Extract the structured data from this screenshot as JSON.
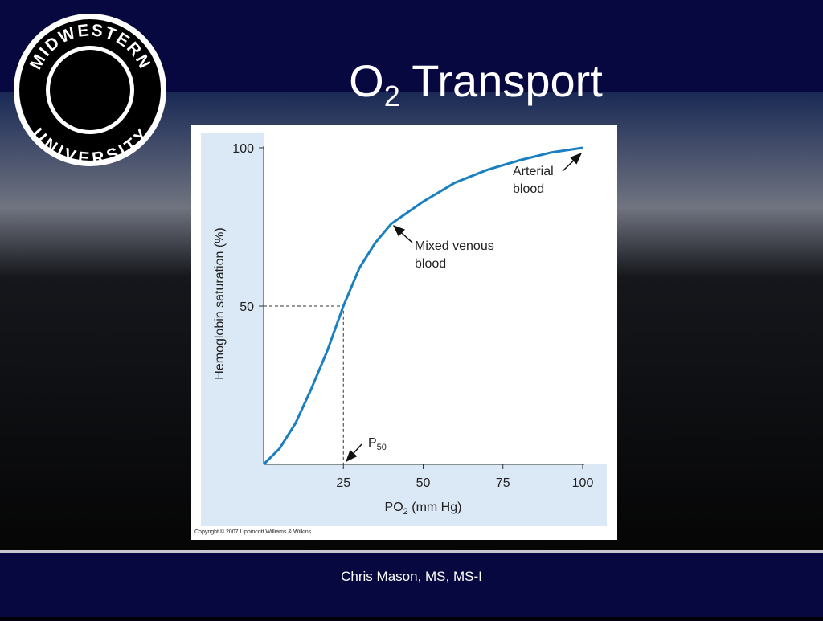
{
  "slide": {
    "title": {
      "main": "O",
      "sub": "2",
      "rest": " Transport"
    },
    "logo": {
      "top": "MIDWESTERN",
      "bottom": "UNIVERSITY"
    },
    "footer": "Chris Mason, MS, MS-I",
    "copyright": "Copyright © 2007 Lippincott Williams & Wilkins."
  },
  "chart_data": {
    "type": "line",
    "x": [
      0,
      5,
      10,
      15,
      20,
      25,
      30,
      35,
      40,
      50,
      60,
      70,
      80,
      90,
      100
    ],
    "values": [
      0,
      5,
      13,
      24,
      36,
      50,
      62,
      70,
      76,
      83,
      89,
      93,
      96,
      98.5,
      100
    ],
    "color": "#1a7fc0",
    "xlim": [
      0,
      100
    ],
    "ylim": [
      0,
      100
    ],
    "xticks": [
      25,
      50,
      75,
      100
    ],
    "yticks": [
      50,
      100
    ],
    "x_label": {
      "main": "PO",
      "sub": "2",
      "rest": " (mm Hg)"
    },
    "y_label": "Hemoglobin saturation (%)",
    "p50_point": {
      "x": 25,
      "y": 50
    },
    "annotations": {
      "arterial": [
        "Arterial",
        "blood"
      ],
      "venous": [
        "Mixed venous",
        "blood"
      ],
      "p50": {
        "main": "P",
        "sub": "50"
      }
    }
  }
}
